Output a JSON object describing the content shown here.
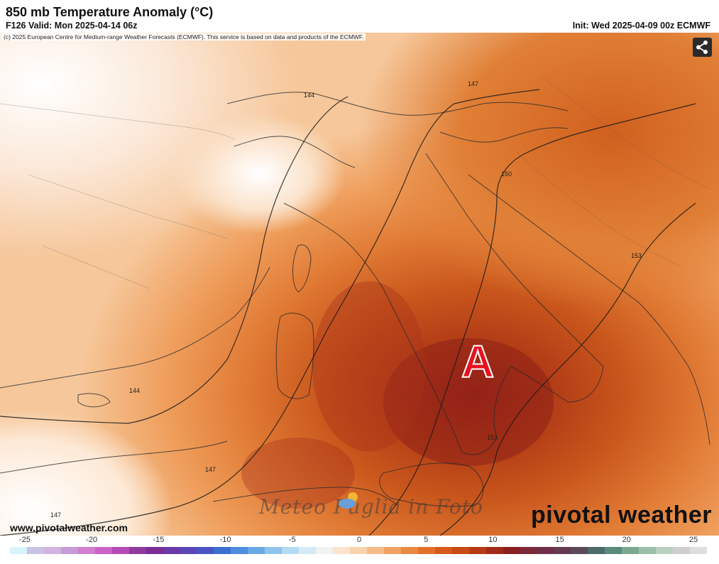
{
  "header": {
    "title": "850 mb Temperature Anomaly (°C)",
    "valid": "F126 Valid: Mon 2025-04-14 06z",
    "init": "Init: Wed 2025-04-09 00z ECMWF"
  },
  "copyright": "(c) 2025 European Centre for Medium-range Weather Forecasts (ECMWF). This service is based on data and products of the ECMWF.",
  "share_icon": "share-icon",
  "contour_labels": [
    "144",
    "147",
    "150",
    "153",
    "153",
    "144",
    "147",
    "147"
  ],
  "big_letter": "A",
  "watermark": "Meteo Puglia in Foto",
  "website": "www.pivotalweather.com",
  "brand": "pivotal weather",
  "colorbar": {
    "tick_labels": [
      "-25",
      "-20",
      "-15",
      "-10",
      "-5",
      "0",
      "5",
      "10",
      "15",
      "20",
      "25"
    ],
    "colors": [
      "#d8f4fb",
      "#c8c2e6",
      "#d2b4e0",
      "#c79ad8",
      "#d37fd0",
      "#cc62c7",
      "#b54bb8",
      "#8e3a9e",
      "#7a2e94",
      "#6a3aa8",
      "#5b46b8",
      "#4a55c4",
      "#3b6fd0",
      "#4c8ddc",
      "#6aa8e6",
      "#8ec4ee",
      "#b3dcf2",
      "#d4ebf5",
      "#f2f2f2",
      "#fbe4cf",
      "#f8d2ad",
      "#f4bb86",
      "#f0a262",
      "#ea8a42",
      "#e2702a",
      "#d65a1c",
      "#c84a14",
      "#b63a16",
      "#a02a1a",
      "#8a2020",
      "#7a2a3a",
      "#6e3048",
      "#643a52",
      "#5a4a5a",
      "#4e6a6a",
      "#5a8a7a",
      "#7aa890",
      "#9abfa8",
      "#b8cfc0",
      "#cfcfcf",
      "#dedede"
    ]
  }
}
